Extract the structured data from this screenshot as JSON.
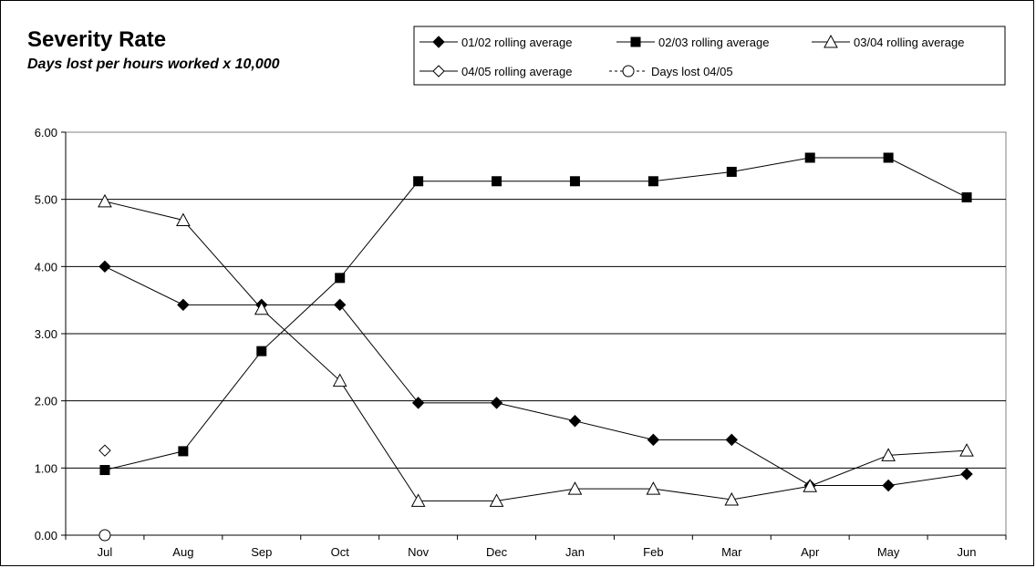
{
  "chart_data": {
    "type": "line",
    "title": "Severity Rate",
    "subtitle": "Days lost per hours worked x 10,000",
    "categories": [
      "Jul",
      "Aug",
      "Sep",
      "Oct",
      "Nov",
      "Dec",
      "Jan",
      "Feb",
      "Mar",
      "Apr",
      "May",
      "Jun"
    ],
    "ylim": [
      0,
      6
    ],
    "yticks": [
      "0.00",
      "1.00",
      "2.00",
      "3.00",
      "4.00",
      "5.00",
      "6.00"
    ],
    "grid": true,
    "legend_position": "top-right",
    "series": [
      {
        "name": "01/02 rolling average",
        "marker": "diamond-filled",
        "values": [
          4.0,
          3.43,
          3.43,
          3.43,
          1.97,
          1.97,
          1.7,
          1.42,
          1.42,
          0.74,
          0.74,
          0.91
        ]
      },
      {
        "name": "02/03 rolling average",
        "marker": "square-filled",
        "values": [
          0.97,
          1.25,
          2.74,
          3.83,
          5.27,
          5.27,
          5.27,
          5.27,
          5.41,
          5.62,
          5.62,
          5.03
        ]
      },
      {
        "name": "03/04 rolling average",
        "marker": "triangle-open",
        "values": [
          4.97,
          4.69,
          3.37,
          2.3,
          0.51,
          0.51,
          0.69,
          0.69,
          0.53,
          0.73,
          1.19,
          1.26
        ]
      },
      {
        "name": "04/05 rolling average",
        "marker": "diamond-open",
        "values": [
          1.26,
          null,
          null,
          null,
          null,
          null,
          null,
          null,
          null,
          null,
          null,
          null
        ]
      },
      {
        "name": "Days lost 04/05",
        "marker": "circle-open",
        "dashed": true,
        "values": [
          0.0,
          null,
          null,
          null,
          null,
          null,
          null,
          null,
          null,
          null,
          null,
          null
        ]
      }
    ]
  }
}
